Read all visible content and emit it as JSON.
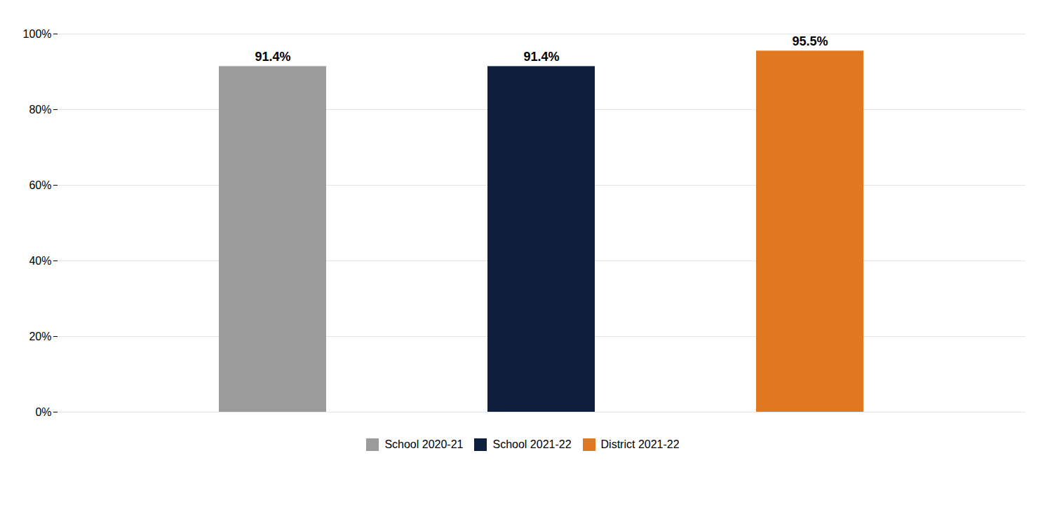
{
  "chart_data": {
    "type": "bar",
    "categories": [
      "School 2020-21",
      "School 2021-22",
      "District 2021-22"
    ],
    "values": [
      91.4,
      91.4,
      95.5
    ],
    "value_labels": [
      "91.4%",
      "91.4%",
      "95.5%"
    ],
    "data_labels": true,
    "colors": [
      "#9b9b9b",
      "#0d1f3c",
      "#e07820"
    ],
    "ylim": [
      0,
      100
    ],
    "yticks": [
      {
        "value": 0,
        "label": "0%"
      },
      {
        "value": 20,
        "label": "20%"
      },
      {
        "value": 40,
        "label": "40%"
      },
      {
        "value": 60,
        "label": "60%"
      },
      {
        "value": 80,
        "label": "80%"
      },
      {
        "value": 100,
        "label": "100%"
      }
    ],
    "grid": true,
    "legend": "bottom",
    "tick_labels": "y"
  }
}
